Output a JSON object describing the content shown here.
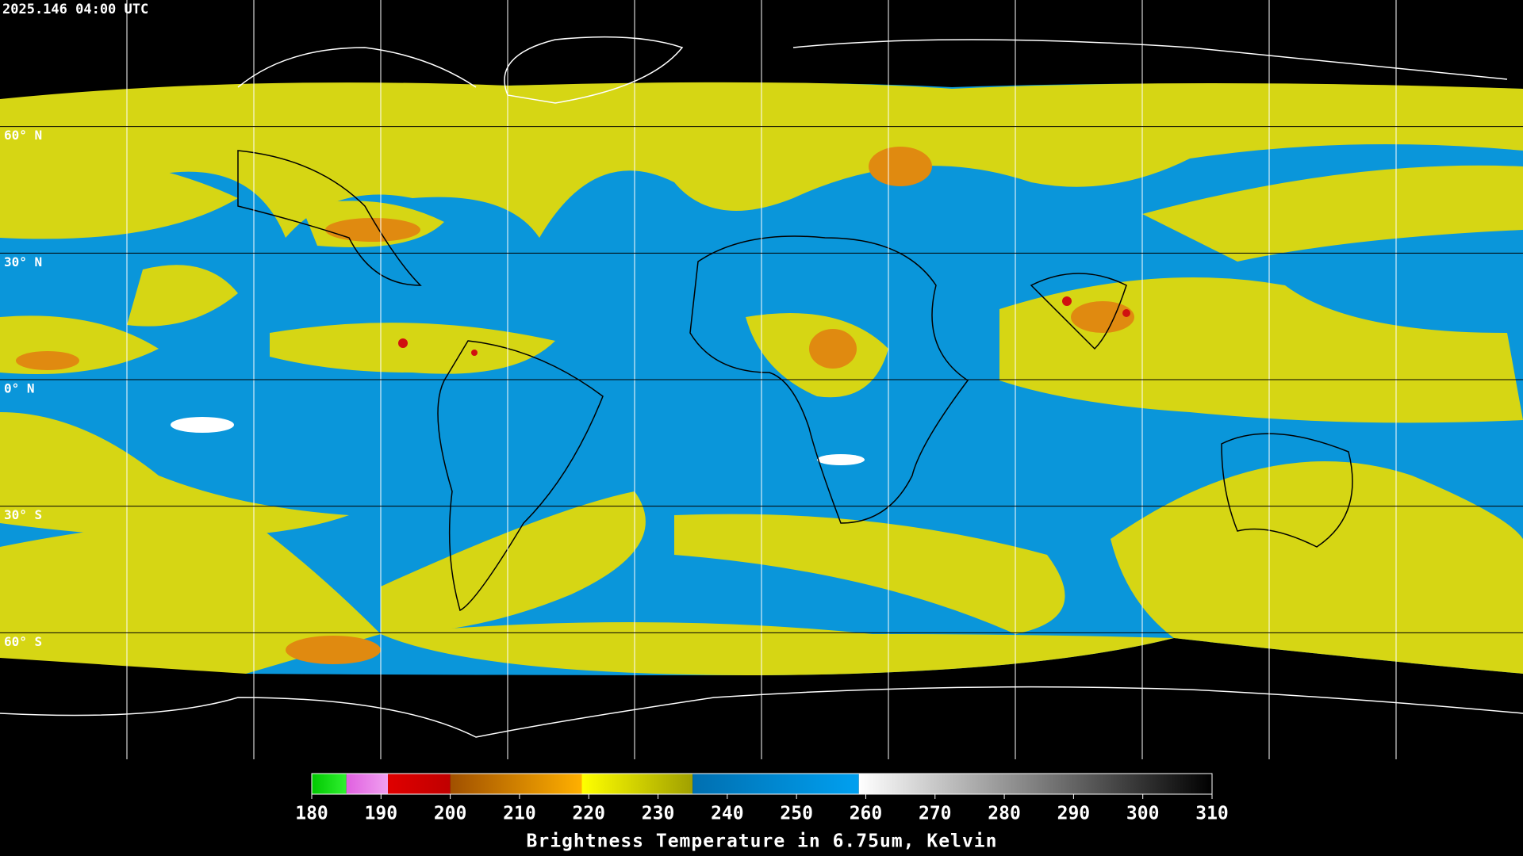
{
  "timestamp": "2025.146 04:00 UTC",
  "grid": {
    "latitudes": [
      {
        "value": 60,
        "label": "60° N"
      },
      {
        "value": 30,
        "label": "30° N"
      },
      {
        "value": 0,
        "label": "0° N"
      },
      {
        "value": -30,
        "label": "30° S"
      },
      {
        "value": -60,
        "label": "60° S"
      }
    ],
    "longitudes": [
      -150,
      -120,
      -90,
      -60,
      -30,
      0,
      30,
      60,
      90,
      120,
      150
    ]
  },
  "colorbar": {
    "lim": [
      180,
      310
    ],
    "ticks": [
      180,
      190,
      200,
      210,
      220,
      230,
      240,
      250,
      260,
      270,
      280,
      290,
      300,
      310
    ],
    "label": "Brightness Temperature in 6.75um, Kelvin",
    "segments": [
      {
        "from": 180,
        "to": 185,
        "colors": [
          "#00c800",
          "#30f030"
        ]
      },
      {
        "from": 185,
        "to": 191,
        "colors": [
          "#e060e0",
          "#f0a0f0"
        ]
      },
      {
        "from": 191,
        "to": 200,
        "colors": [
          "#e00000",
          "#c00000"
        ]
      },
      {
        "from": 200,
        "to": 219,
        "colors": [
          "#a05000",
          "#ffb000"
        ]
      },
      {
        "from": 219,
        "to": 235,
        "colors": [
          "#ffff00",
          "#a0a000"
        ]
      },
      {
        "from": 235,
        "to": 259,
        "colors": [
          "#006fb0",
          "#00a0f0"
        ]
      },
      {
        "from": 259,
        "to": 310,
        "colors": [
          "#ffffff",
          "#000000"
        ]
      }
    ]
  }
}
